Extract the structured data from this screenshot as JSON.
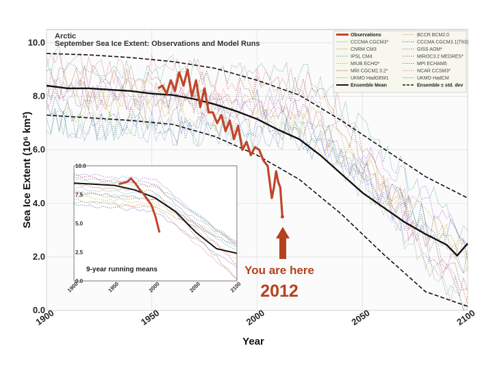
{
  "chart_data": {
    "type": "line",
    "title": "Arctic",
    "subtitle": "September Sea Ice Extent: Observations and Model Runs",
    "xlabel": "Year",
    "ylabel": "Sea Ice Extent (10⁶ km²)",
    "xlim": [
      1900,
      2100
    ],
    "ylim": [
      0,
      10.5
    ],
    "xticks": [
      "1900",
      "1950",
      "2000",
      "2050",
      "2100"
    ],
    "yticks": [
      "0.0",
      "2.0",
      "4.0",
      "6.0",
      "8.0",
      "10.0"
    ],
    "grid": true,
    "legend": {
      "placement": "top-right",
      "entries": [
        {
          "label": "Observations",
          "color": "#c0452a",
          "style": "thick"
        },
        {
          "label": "BCCR BCM2.0",
          "color": "#e39a6a",
          "style": "dotted"
        },
        {
          "label": "CCCMA CGCM3*",
          "color": "#7aa8d8",
          "style": "dotted"
        },
        {
          "label": "CCCMA CGCM3.1(T63)",
          "color": "#5f6fb3",
          "style": "dotted"
        },
        {
          "label": "CNRM CM3",
          "color": "#8fb35a",
          "style": "dotted"
        },
        {
          "label": "GISS AOM*",
          "color": "#b07acc",
          "style": "dotted"
        },
        {
          "label": "IPSL CM4",
          "color": "#5aa9a0",
          "style": "dotted"
        },
        {
          "label": "MIROC3.2 MEDRES*",
          "color": "#c95d9a",
          "style": "dotted"
        },
        {
          "label": "MIUB ECHO*",
          "color": "#d6b14a",
          "style": "dotted"
        },
        {
          "label": "MPI ECHAM5",
          "color": "#6f8fc8",
          "style": "dotted"
        },
        {
          "label": "MRI CGCM2.3.2*",
          "color": "#9a6a4a",
          "style": "dotted"
        },
        {
          "label": "NCAR CCSM3*",
          "color": "#e07a7a",
          "style": "dotted"
        },
        {
          "label": "UKMO HadGEM1",
          "color": "#6fb070",
          "style": "dotted"
        },
        {
          "label": "UKMO HadCM",
          "color": "#8a8ad0",
          "style": "dotted"
        },
        {
          "label": "Ensemble Mean",
          "color": "#111111",
          "style": "solid"
        },
        {
          "label": "Ensemble ± std. dev",
          "color": "#111111",
          "style": "dashed"
        }
      ]
    },
    "series": [
      {
        "name": "Ensemble Mean",
        "x": [
          1900,
          1910,
          1920,
          1930,
          1940,
          1950,
          1960,
          1970,
          1980,
          1990,
          2000,
          2010,
          2020,
          2030,
          2040,
          2050,
          2060,
          2070,
          2080,
          2090,
          2095,
          2100
        ],
        "values": [
          8.4,
          8.3,
          8.3,
          8.25,
          8.2,
          8.1,
          8.05,
          7.9,
          7.7,
          7.45,
          7.15,
          6.75,
          6.4,
          5.8,
          5.1,
          4.4,
          3.85,
          3.3,
          2.85,
          2.45,
          2.05,
          2.5
        ]
      },
      {
        "name": "Ensemble ± std. dev",
        "x": [
          1900,
          1920,
          1940,
          1960,
          1980,
          2000,
          2020,
          2040,
          2060,
          2080,
          2100
        ],
        "values": [
          9.6,
          9.55,
          9.45,
          9.3,
          9.05,
          8.6,
          8.05,
          7.1,
          6.05,
          5.0,
          4.2
        ]
      },
      {
        "name": "Ensemble ± std. dev",
        "x": [
          1900,
          1920,
          1940,
          1960,
          1980,
          2000,
          2020,
          2040,
          2060,
          2080,
          2100
        ],
        "values": [
          7.3,
          7.2,
          7.1,
          6.95,
          6.5,
          5.8,
          4.9,
          3.6,
          2.1,
          0.7,
          0.15
        ]
      },
      {
        "name": "Observations",
        "x": [
          1953,
          1955,
          1957,
          1959,
          1961,
          1963,
          1965,
          1967,
          1969,
          1971,
          1973,
          1975,
          1977,
          1979,
          1981,
          1983,
          1985,
          1987,
          1989,
          1991,
          1993,
          1995,
          1997,
          1999,
          2001,
          2003,
          2005,
          2007,
          2008,
          2009,
          2010,
          2011,
          2012
        ],
        "values": [
          8.3,
          8.4,
          8.1,
          8.6,
          8.2,
          8.9,
          8.4,
          9.0,
          8.0,
          8.6,
          7.6,
          8.3,
          7.4,
          7.4,
          7.0,
          7.3,
          6.7,
          7.1,
          6.4,
          6.9,
          6.0,
          6.3,
          5.8,
          6.1,
          6.0,
          5.6,
          5.4,
          4.2,
          4.6,
          5.2,
          4.8,
          4.6,
          3.5
        ]
      }
    ],
    "inset": {
      "label": "9-year running means",
      "xlim": [
        1900,
        2100
      ],
      "ylim": [
        0,
        10.0
      ],
      "xticks": [
        "1900",
        "1950",
        "2000",
        "2050",
        "2100"
      ],
      "yticks": [
        "0.0",
        "2.5",
        "5.0",
        "7.5",
        "10.0"
      ],
      "series": [
        {
          "name": "Ensemble Mean",
          "x": [
            1900,
            1925,
            1950,
            1975,
            2000,
            2025,
            2050,
            2075,
            2100
          ],
          "values": [
            8.5,
            8.4,
            8.3,
            7.9,
            7.2,
            6.0,
            4.2,
            2.8,
            2.4
          ]
        },
        {
          "name": "Observations",
          "x": [
            1955,
            1960,
            1965,
            1970,
            1975,
            1980,
            1985,
            1990,
            1995,
            2000,
            2005
          ],
          "values": [
            8.4,
            8.5,
            8.6,
            8.9,
            8.5,
            8.0,
            7.6,
            7.1,
            6.6,
            5.6,
            4.2
          ]
        }
      ]
    },
    "annotations": [
      "You are here",
      "2012"
    ]
  }
}
